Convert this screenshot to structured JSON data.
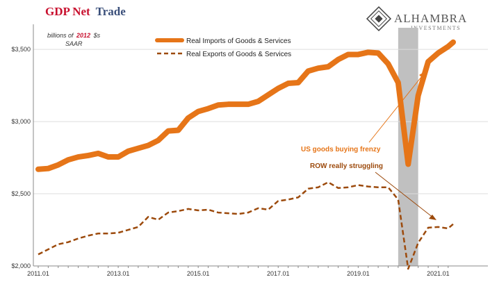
{
  "chart_data": {
    "type": "line",
    "title_part1": "GDP Net",
    "title_part2": "Trade",
    "title_color1": "#c8102e",
    "title_color2": "#3a4f7a",
    "unit_part1": "billions of",
    "unit_year": "2012",
    "unit_part2": "$s",
    "unit_line2": "SAAR",
    "x_labels": [
      "2011.01",
      "2013.01",
      "2015.01",
      "2017.01",
      "2019.01",
      "2021.01"
    ],
    "y_ticks": [
      2000,
      2500,
      3000,
      3500
    ],
    "y_tick_labels": [
      "$2,000",
      "$2,500",
      "$3,000",
      "$3,500"
    ],
    "ylim": [
      2000,
      3650
    ],
    "x_start": 2011.0,
    "x_end": 2021.375,
    "recession": {
      "start": 2020.0,
      "end": 2020.5,
      "color": "#c0c0c0"
    },
    "series": [
      {
        "name": "Real Imports of Goods & Services",
        "color": "#e67518",
        "style": "solid",
        "x": [
          2011.0,
          2011.25,
          2011.5,
          2011.75,
          2012.0,
          2012.25,
          2012.5,
          2012.75,
          2013.0,
          2013.25,
          2013.5,
          2013.75,
          2014.0,
          2014.25,
          2014.5,
          2014.75,
          2015.0,
          2015.25,
          2015.5,
          2015.75,
          2016.0,
          2016.25,
          2016.5,
          2016.75,
          2017.0,
          2017.25,
          2017.5,
          2017.75,
          2018.0,
          2018.25,
          2018.5,
          2018.75,
          2019.0,
          2019.25,
          2019.5,
          2019.75,
          2020.0,
          2020.25,
          2020.5,
          2020.75,
          2021.0,
          2021.25,
          2021.375
        ],
        "values": [
          2670,
          2675,
          2700,
          2735,
          2755,
          2765,
          2780,
          2755,
          2755,
          2795,
          2815,
          2835,
          2870,
          2935,
          2940,
          3025,
          3070,
          3090,
          3115,
          3120,
          3120,
          3120,
          3140,
          3185,
          3230,
          3265,
          3270,
          3350,
          3370,
          3380,
          3430,
          3465,
          3465,
          3480,
          3475,
          3400,
          3270,
          2705,
          3180,
          3415,
          3475,
          3520,
          3550
        ]
      },
      {
        "name": "Real Exports of Goods & Services",
        "color": "#9c4a0c",
        "style": "dashed",
        "x": [
          2011.0,
          2011.25,
          2011.5,
          2011.75,
          2012.0,
          2012.25,
          2012.5,
          2012.75,
          2013.0,
          2013.25,
          2013.5,
          2013.75,
          2014.0,
          2014.25,
          2014.5,
          2014.75,
          2015.0,
          2015.25,
          2015.5,
          2015.75,
          2016.0,
          2016.25,
          2016.5,
          2016.75,
          2017.0,
          2017.25,
          2017.5,
          2017.75,
          2018.0,
          2018.25,
          2018.5,
          2018.75,
          2019.0,
          2019.25,
          2019.5,
          2019.75,
          2020.0,
          2020.25,
          2020.5,
          2020.75,
          2021.0,
          2021.25,
          2021.375
        ],
        "values": [
          2080,
          2115,
          2150,
          2165,
          2190,
          2210,
          2225,
          2225,
          2230,
          2250,
          2270,
          2340,
          2320,
          2370,
          2380,
          2395,
          2385,
          2390,
          2370,
          2365,
          2360,
          2370,
          2400,
          2390,
          2450,
          2460,
          2475,
          2535,
          2545,
          2580,
          2540,
          2545,
          2560,
          2550,
          2545,
          2545,
          2460,
          1980,
          2160,
          2265,
          2270,
          2260,
          2290
        ]
      }
    ],
    "annotations": [
      {
        "text": "US goods buying frenzy",
        "color": "#e67518"
      },
      {
        "text": "ROW really struggling",
        "color": "#9c4a0c"
      }
    ],
    "brand": {
      "name": "ALHAMBRA",
      "sub": "INVESTMENTS"
    }
  }
}
